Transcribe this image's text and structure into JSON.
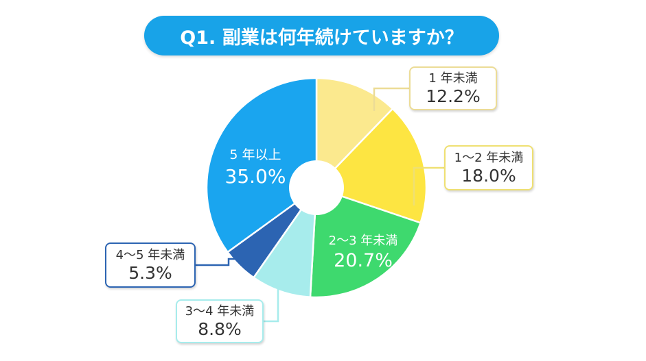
{
  "title": "Q1. 副業は何年続けていますか？",
  "chart_data": {
    "type": "pie",
    "title": "Q1. 副業は何年続けていますか？",
    "categories": [
      "1 年未満",
      "1〜2 年未満",
      "2〜3 年未満",
      "3〜4 年未満",
      "4〜5 年未満",
      "5 年以上"
    ],
    "values": [
      12.2,
      18.0,
      20.7,
      8.8,
      5.3,
      35.0
    ],
    "value_labels": [
      "12.2%",
      "18.0%",
      "20.7%",
      "8.8%",
      "5.3%",
      "35.0%"
    ],
    "colors": [
      "#fbe98e",
      "#fde542",
      "#3ed96e",
      "#a7ecec",
      "#2c64b2",
      "#1aa5ef"
    ],
    "outline_colors": [
      "#ecdc96",
      "#efe072",
      "#3ed96e",
      "#a7ecec",
      "#2c64b2",
      "#1aa5ef"
    ],
    "start": "top, clockwise",
    "donut": true
  }
}
